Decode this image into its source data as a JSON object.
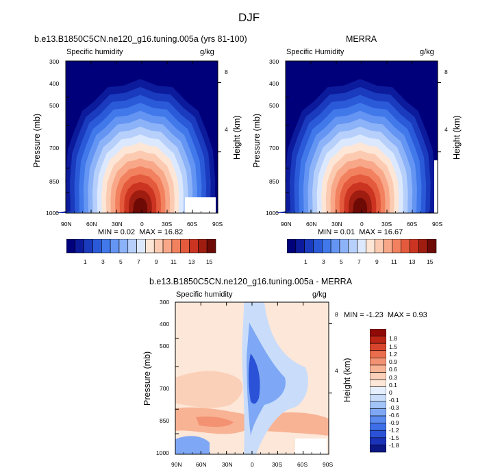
{
  "page_title": "DJF",
  "colors": {
    "model_scale": [
      "#00007a",
      "#0c1a9c",
      "#1a3bbd",
      "#2b5ad9",
      "#4178ea",
      "#6495f3",
      "#8cb2f8",
      "#b6d0fb",
      "#dce8fd",
      "#fde6d6",
      "#fbcab1",
      "#f8a888",
      "#f2815f",
      "#e45a3c",
      "#cc3422",
      "#9e1d10",
      "#6e0a06"
    ],
    "diff_scale": [
      "#0b1886",
      "#1a33b8",
      "#2b52d6",
      "#3e6fe8",
      "#5c8bf0",
      "#7ea8f5",
      "#a3c4f8",
      "#c9ddfb",
      "#e6effd",
      "#fde7d8",
      "#fbd0b8",
      "#f8b394",
      "#f39272",
      "#ea6d4d",
      "#d8452d",
      "#bb2516",
      "#900a08"
    ]
  },
  "chart_data": [
    {
      "type": "heatmap",
      "title": "b.e13.B1850C5CN.ne120_g16.tuning.005a (yrs 81-100)",
      "left_label": "Specific humidity",
      "right_label": "g/kg",
      "ylabel": "Pressure (mb)",
      "ylabel_right": "Height (km)",
      "x_ticks": [
        "90N",
        "60N",
        "30N",
        "0",
        "30S",
        "60S",
        "90S"
      ],
      "y_ticks": [
        "300",
        "400",
        "500",
        "700",
        "850",
        "1000"
      ],
      "height_ticks": [
        "8",
        "4"
      ],
      "ylim": [
        1000,
        300
      ],
      "min_label": "MIN =",
      "min_value": "0.02",
      "max_label": "MAX =",
      "max_value": "16.82",
      "colorbar_labels": [
        "1",
        "3",
        "5",
        "7",
        "9",
        "11",
        "13",
        "15"
      ],
      "peak_value": 16.82,
      "peak_lat": 5
    },
    {
      "type": "heatmap",
      "title": "MERRA",
      "left_label": "Specific Humidity",
      "right_label": "g/kg",
      "ylabel": "Pressure (mb)",
      "ylabel_right": "Height (km)",
      "x_ticks": [
        "90N",
        "60N",
        "30N",
        "0",
        "30S",
        "60S",
        "90S"
      ],
      "y_ticks": [
        "300",
        "400",
        "500",
        "700",
        "850",
        "1000"
      ],
      "height_ticks": [
        "8",
        "4"
      ],
      "ylim": [
        1000,
        300
      ],
      "min_label": "MIN =",
      "min_value": "0.01",
      "max_label": "MAX =",
      "max_value": "16.67",
      "colorbar_labels": [
        "1",
        "3",
        "5",
        "7",
        "9",
        "11",
        "13",
        "15"
      ],
      "peak_value": 16.67,
      "peak_lat": 5
    },
    {
      "type": "heatmap",
      "title": "b.e13.B1850C5CN.ne120_g16.tuning.005a - MERRA",
      "left_label": "Specific humidity",
      "right_label": "g/kg",
      "ylabel": "Pressure (mb)",
      "ylabel_right": "Height (km)",
      "x_ticks": [
        "90N",
        "60N",
        "30N",
        "0",
        "30S",
        "60S",
        "90S"
      ],
      "y_ticks": [
        "300",
        "400",
        "500",
        "700",
        "850",
        "1000"
      ],
      "height_ticks": [
        "8",
        "4"
      ],
      "ylim": [
        1000,
        300
      ],
      "min_label": "MIN =",
      "min_value": "-1.23",
      "max_label": "MAX =",
      "max_value": "0.93",
      "colorbar_labels": [
        "1.8",
        "1.5",
        "1.2",
        "0.9",
        "0.6",
        "0.3",
        "0.1",
        "0",
        "-0.1",
        "-0.3",
        "-0.6",
        "-0.9",
        "-1.2",
        "-1.5",
        "-1.8"
      ]
    }
  ]
}
